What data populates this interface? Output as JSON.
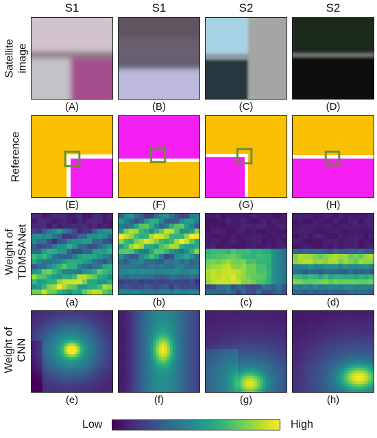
{
  "column_headers": [
    "S1",
    "S1",
    "S2",
    "S2"
  ],
  "row_labels": [
    [
      "Satellite",
      "image"
    ],
    [
      "Reference"
    ],
    [
      "Weight of",
      "TDMSANet"
    ],
    [
      "Weight of",
      "CNN"
    ]
  ],
  "captions": [
    [
      "(A)",
      "(B)",
      "(C)",
      "(D)"
    ],
    [
      "(E)",
      "(F)",
      "(G)",
      "(H)"
    ],
    [
      "(a)",
      "(b)",
      "(c)",
      "(d)"
    ],
    [
      "(e)",
      "(f)",
      "(g)",
      "(h)"
    ]
  ],
  "colorbar": {
    "low_label": "Low",
    "high_label": "High",
    "colors": [
      "#440154",
      "#482878",
      "#3e4989",
      "#31688e",
      "#26828e",
      "#1f9e89",
      "#35b779",
      "#6ece58",
      "#b5de2b",
      "#fde725"
    ]
  },
  "reference_colors": {
    "class_yellow": "#f9bf00",
    "class_magenta": "#f41ff2",
    "boundary": "#ffffff",
    "box": "#6a8f3a"
  }
}
